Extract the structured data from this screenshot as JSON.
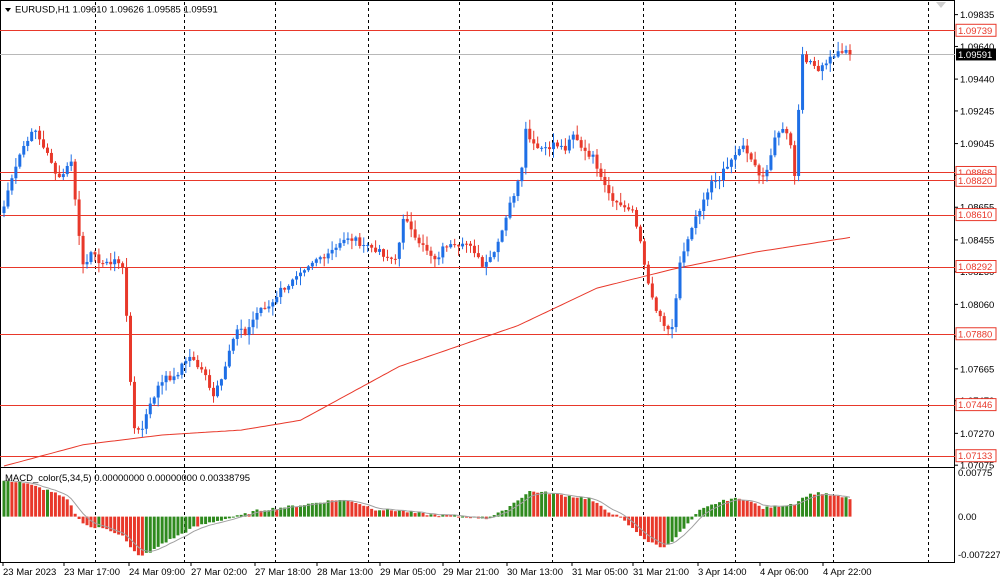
{
  "header": {
    "symbol_info": "EURUSD,H1  1.09610 1.09626 1.09585 1.09591"
  },
  "indicator": {
    "label": "MACD_color(5,34,5) 0.00000000 0.00000000 0.00338795"
  },
  "colors": {
    "bull": "#1e6fe6",
    "bear": "#e8382a",
    "level_line": "#e8382a",
    "ma_line": "#e8382a",
    "macd_pos": "#2f8a1e",
    "macd_neg": "#e8382a",
    "grid": "#000000",
    "current_price_bg": "#000000"
  },
  "chart_data": {
    "type": "candlestick",
    "price_range": [
      1.0707,
      1.099
    ],
    "y_ticks": [
      "1.09835",
      "1.09640",
      "1.09440",
      "1.09245",
      "1.09045",
      "1.08850",
      "1.08655",
      "1.08455",
      "1.08260",
      "1.08060",
      "1.07865",
      "1.07665",
      "1.07470",
      "1.07270",
      "1.07075"
    ],
    "y_tick_values": [
      1.09835,
      1.0964,
      1.0944,
      1.09245,
      1.09045,
      1.0885,
      1.08655,
      1.08455,
      1.0826,
      1.0806,
      1.07865,
      1.07665,
      1.0747,
      1.0727,
      1.07075
    ],
    "level_lines": [
      {
        "label": "1.09739",
        "value": 1.09739
      },
      {
        "label": "1.08868",
        "value": 1.08868
      },
      {
        "label": "1.08820",
        "value": 1.0882
      },
      {
        "label": "1.08610",
        "value": 1.0861
      },
      {
        "label": "1.08292",
        "value": 1.08292
      },
      {
        "label": "1.07880",
        "value": 1.0788
      },
      {
        "label": "1.07446",
        "value": 1.07446
      },
      {
        "label": "1.07133",
        "value": 1.07133
      }
    ],
    "current_price": {
      "label": "1.09591",
      "value": 1.09591
    },
    "x_labels": [
      "23 Mar 2023",
      "23 Mar 17:00",
      "24 Mar 09:00",
      "27 Mar 02:00",
      "27 Mar 18:00",
      "28 Mar 13:00",
      "29 Mar 05:00",
      "29 Mar 21:00",
      "30 Mar 13:00",
      "31 Mar 05:00",
      "31 Mar 21:00",
      "3 Apr 14:00",
      "4 Apr 06:00",
      "4 Apr 22:00"
    ],
    "anchors": [
      [
        0,
        1.0866
      ],
      [
        2,
        1.0885
      ],
      [
        4,
        1.0898
      ],
      [
        6,
        1.0908
      ],
      [
        8,
        1.0912
      ],
      [
        10,
        1.0903
      ],
      [
        12,
        1.0892
      ],
      [
        14,
        1.0884
      ],
      [
        16,
        1.089
      ],
      [
        17,
        1.0895
      ],
      [
        18,
        1.087
      ],
      [
        19,
        1.0848
      ],
      [
        20,
        1.0832
      ],
      [
        22,
        1.0836
      ],
      [
        24,
        1.0833
      ],
      [
        26,
        1.083
      ],
      [
        28,
        1.0834
      ],
      [
        30,
        1.0828
      ],
      [
        31,
        1.08
      ],
      [
        32,
        1.076
      ],
      [
        33,
        1.0728
      ],
      [
        35,
        1.0731
      ],
      [
        37,
        1.0746
      ],
      [
        39,
        1.0755
      ],
      [
        41,
        1.0763
      ],
      [
        43,
        1.076
      ],
      [
        45,
        1.0768
      ],
      [
        47,
        1.0775
      ],
      [
        49,
        1.0768
      ],
      [
        51,
        1.0762
      ],
      [
        53,
        1.0751
      ],
      [
        55,
        1.0762
      ],
      [
        57,
        1.0778
      ],
      [
        59,
        1.079
      ],
      [
        61,
        1.0788
      ],
      [
        64,
        1.0801
      ],
      [
        67,
        1.0805
      ],
      [
        70,
        1.0815
      ],
      [
        73,
        1.082
      ],
      [
        76,
        1.0825
      ],
      [
        79,
        1.0833
      ],
      [
        82,
        1.0838
      ],
      [
        85,
        1.0844
      ],
      [
        88,
        1.0846
      ],
      [
        91,
        1.0843
      ],
      [
        94,
        1.084
      ],
      [
        97,
        1.0833
      ],
      [
        99,
        1.0834
      ],
      [
        101,
        1.0857
      ],
      [
        103,
        1.0853
      ],
      [
        105,
        1.0845
      ],
      [
        107,
        1.0838
      ],
      [
        109,
        1.0832
      ],
      [
        111,
        1.084
      ],
      [
        113,
        1.0845
      ],
      [
        116,
        1.0843
      ],
      [
        119,
        1.0839
      ],
      [
        121,
        1.0831
      ],
      [
        123,
        1.0835
      ],
      [
        125,
        1.0845
      ],
      [
        127,
        1.086
      ],
      [
        129,
        1.0874
      ],
      [
        131,
        1.0892
      ],
      [
        132,
        1.0913
      ],
      [
        134,
        1.0905
      ],
      [
        136,
        1.0902
      ],
      [
        139,
        1.0904
      ],
      [
        142,
        1.0901
      ],
      [
        144,
        1.0909
      ],
      [
        146,
        1.0903
      ],
      [
        149,
        1.0896
      ],
      [
        151,
        1.0886
      ],
      [
        153,
        1.0875
      ],
      [
        155,
        1.0868
      ],
      [
        157,
        1.0866
      ],
      [
        159,
        1.0862
      ],
      [
        161,
        1.0845
      ],
      [
        162,
        1.0832
      ],
      [
        163,
        1.0817
      ],
      [
        165,
        1.0802
      ],
      [
        167,
        1.0792
      ],
      [
        169,
        1.079
      ],
      [
        170,
        1.0808
      ],
      [
        171,
        1.0832
      ],
      [
        173,
        1.0845
      ],
      [
        175,
        1.0858
      ],
      [
        177,
        1.0868
      ],
      [
        179,
        1.088
      ],
      [
        181,
        1.0884
      ],
      [
        183,
        1.089
      ],
      [
        185,
        1.0898
      ],
      [
        187,
        1.0902
      ],
      [
        189,
        1.0895
      ],
      [
        191,
        1.0884
      ],
      [
        193,
        1.0889
      ],
      [
        195,
        1.0906
      ],
      [
        197,
        1.0915
      ],
      [
        199,
        1.0905
      ],
      [
        200,
        1.0886
      ],
      [
        201,
        1.0925
      ],
      [
        202,
        1.096
      ],
      [
        204,
        1.0953
      ],
      [
        206,
        1.0951
      ],
      [
        208,
        1.0955
      ],
      [
        210,
        1.0959
      ],
      [
        212,
        1.0961
      ],
      [
        213,
        1.096
      ],
      [
        214,
        1.0959
      ]
    ],
    "ma_points": [
      [
        0,
        1.0707
      ],
      [
        20,
        1.072
      ],
      [
        40,
        1.0726
      ],
      [
        60,
        1.0729
      ],
      [
        75,
        1.0735
      ],
      [
        100,
        1.0768
      ],
      [
        130,
        1.0793
      ],
      [
        150,
        1.0816
      ],
      [
        170,
        1.0828
      ],
      [
        190,
        1.0838
      ],
      [
        214,
        1.0847
      ]
    ],
    "macd": {
      "range": [
        -0.00722,
        0.00776
      ],
      "y_ticks": [
        "0.00775",
        "0.00",
        "-0.007227"
      ],
      "y_tick_values": [
        0.00775,
        0.0,
        -0.007227
      ],
      "anchors": [
        [
          0,
          0.006
        ],
        [
          4,
          0.0058
        ],
        [
          8,
          0.005
        ],
        [
          12,
          0.0042
        ],
        [
          16,
          0.0028
        ],
        [
          19,
          -0.0005
        ],
        [
          22,
          -0.0018
        ],
        [
          26,
          -0.002
        ],
        [
          30,
          -0.0032
        ],
        [
          32,
          -0.0052
        ],
        [
          34,
          -0.0065
        ],
        [
          37,
          -0.006
        ],
        [
          40,
          -0.0045
        ],
        [
          44,
          -0.0032
        ],
        [
          48,
          -0.0018
        ],
        [
          52,
          -0.001
        ],
        [
          56,
          -0.0004
        ],
        [
          60,
          0.0002
        ],
        [
          64,
          0.001
        ],
        [
          70,
          0.0015
        ],
        [
          76,
          0.002
        ],
        [
          84,
          0.0028
        ],
        [
          88,
          0.0026
        ],
        [
          94,
          0.0012
        ],
        [
          100,
          0.001
        ],
        [
          104,
          0.0006
        ],
        [
          108,
          0.0003
        ],
        [
          112,
          0.0002
        ],
        [
          118,
          -0.0001
        ],
        [
          122,
          -0.0003
        ],
        [
          126,
          0.0008
        ],
        [
          130,
          0.0028
        ],
        [
          133,
          0.0042
        ],
        [
          137,
          0.004
        ],
        [
          142,
          0.0035
        ],
        [
          148,
          0.003
        ],
        [
          152,
          0.0012
        ],
        [
          156,
          -0.0002
        ],
        [
          159,
          -0.002
        ],
        [
          163,
          -0.0042
        ],
        [
          167,
          -0.0052
        ],
        [
          169,
          -0.004
        ],
        [
          172,
          -0.002
        ],
        [
          176,
          0.001
        ],
        [
          180,
          0.0022
        ],
        [
          184,
          0.003
        ],
        [
          188,
          0.0028
        ],
        [
          192,
          0.0014
        ],
        [
          196,
          0.0018
        ],
        [
          200,
          0.0022
        ],
        [
          203,
          0.0035
        ],
        [
          206,
          0.004
        ],
        [
          210,
          0.0034
        ],
        [
          214,
          0.003
        ]
      ]
    }
  }
}
